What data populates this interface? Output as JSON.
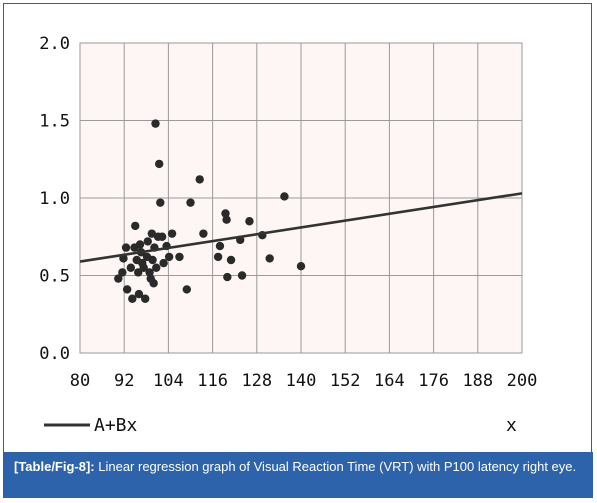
{
  "chart_data": {
    "type": "scatter",
    "xlim": [
      80,
      200
    ],
    "ylim": [
      0.0,
      2.0
    ],
    "x_ticks": [
      "80",
      "92",
      "104",
      "116",
      "128",
      "140",
      "152",
      "164",
      "176",
      "188",
      "200"
    ],
    "y_ticks": [
      "0.0",
      "0.5",
      "1.0",
      "1.5",
      "2.0"
    ],
    "xlabel": "x",
    "grid": true,
    "legend_position": "bottom-left",
    "legend_label": "A+Bx",
    "colors": {
      "points": "#2a2a2a",
      "line": "#333333",
      "grid": "#9a9a9a",
      "caption_bg": "#2d63ab"
    },
    "regression_line": {
      "x": [
        80,
        200
      ],
      "y": [
        0.59,
        1.03
      ]
    },
    "points": [
      {
        "x": 90.4,
        "y": 0.48
      },
      {
        "x": 91.5,
        "y": 0.52
      },
      {
        "x": 91.8,
        "y": 0.61
      },
      {
        "x": 92.5,
        "y": 0.68
      },
      {
        "x": 92.8,
        "y": 0.41
      },
      {
        "x": 93.8,
        "y": 0.55
      },
      {
        "x": 94.2,
        "y": 0.35
      },
      {
        "x": 94.8,
        "y": 0.68
      },
      {
        "x": 95.0,
        "y": 0.82
      },
      {
        "x": 95.4,
        "y": 0.6
      },
      {
        "x": 95.8,
        "y": 0.52
      },
      {
        "x": 96.0,
        "y": 0.38
      },
      {
        "x": 96.3,
        "y": 0.7
      },
      {
        "x": 96.6,
        "y": 0.65
      },
      {
        "x": 96.9,
        "y": 0.58
      },
      {
        "x": 97.3,
        "y": 0.55
      },
      {
        "x": 97.7,
        "y": 0.35
      },
      {
        "x": 98.2,
        "y": 0.62
      },
      {
        "x": 98.4,
        "y": 0.72
      },
      {
        "x": 98.9,
        "y": 0.52
      },
      {
        "x": 99.2,
        "y": 0.48
      },
      {
        "x": 99.5,
        "y": 0.77
      },
      {
        "x": 99.7,
        "y": 0.6
      },
      {
        "x": 100.0,
        "y": 0.45
      },
      {
        "x": 100.2,
        "y": 0.68
      },
      {
        "x": 100.5,
        "y": 1.48
      },
      {
        "x": 100.7,
        "y": 0.55
      },
      {
        "x": 101.2,
        "y": 0.75
      },
      {
        "x": 101.5,
        "y": 1.22
      },
      {
        "x": 101.8,
        "y": 0.97
      },
      {
        "x": 102.3,
        "y": 0.75
      },
      {
        "x": 102.7,
        "y": 0.58
      },
      {
        "x": 103.5,
        "y": 0.69
      },
      {
        "x": 104.2,
        "y": 0.62
      },
      {
        "x": 105.0,
        "y": 0.77
      },
      {
        "x": 107.0,
        "y": 0.62
      },
      {
        "x": 109.0,
        "y": 0.41
      },
      {
        "x": 110.0,
        "y": 0.97
      },
      {
        "x": 112.5,
        "y": 1.12
      },
      {
        "x": 113.5,
        "y": 0.77
      },
      {
        "x": 117.5,
        "y": 0.62
      },
      {
        "x": 118.0,
        "y": 0.69
      },
      {
        "x": 119.5,
        "y": 0.9
      },
      {
        "x": 119.8,
        "y": 0.86
      },
      {
        "x": 120.0,
        "y": 0.49
      },
      {
        "x": 121.0,
        "y": 0.6
      },
      {
        "x": 123.5,
        "y": 0.73
      },
      {
        "x": 124.0,
        "y": 0.5
      },
      {
        "x": 126.0,
        "y": 0.85
      },
      {
        "x": 129.5,
        "y": 0.76
      },
      {
        "x": 131.5,
        "y": 0.61
      },
      {
        "x": 135.5,
        "y": 1.01
      },
      {
        "x": 140.0,
        "y": 0.56
      }
    ]
  },
  "caption": {
    "label": "[Table/Fig-8]:",
    "text": " Linear regression graph of Visual Reaction Time (VRT) with P100 latency right eye."
  }
}
